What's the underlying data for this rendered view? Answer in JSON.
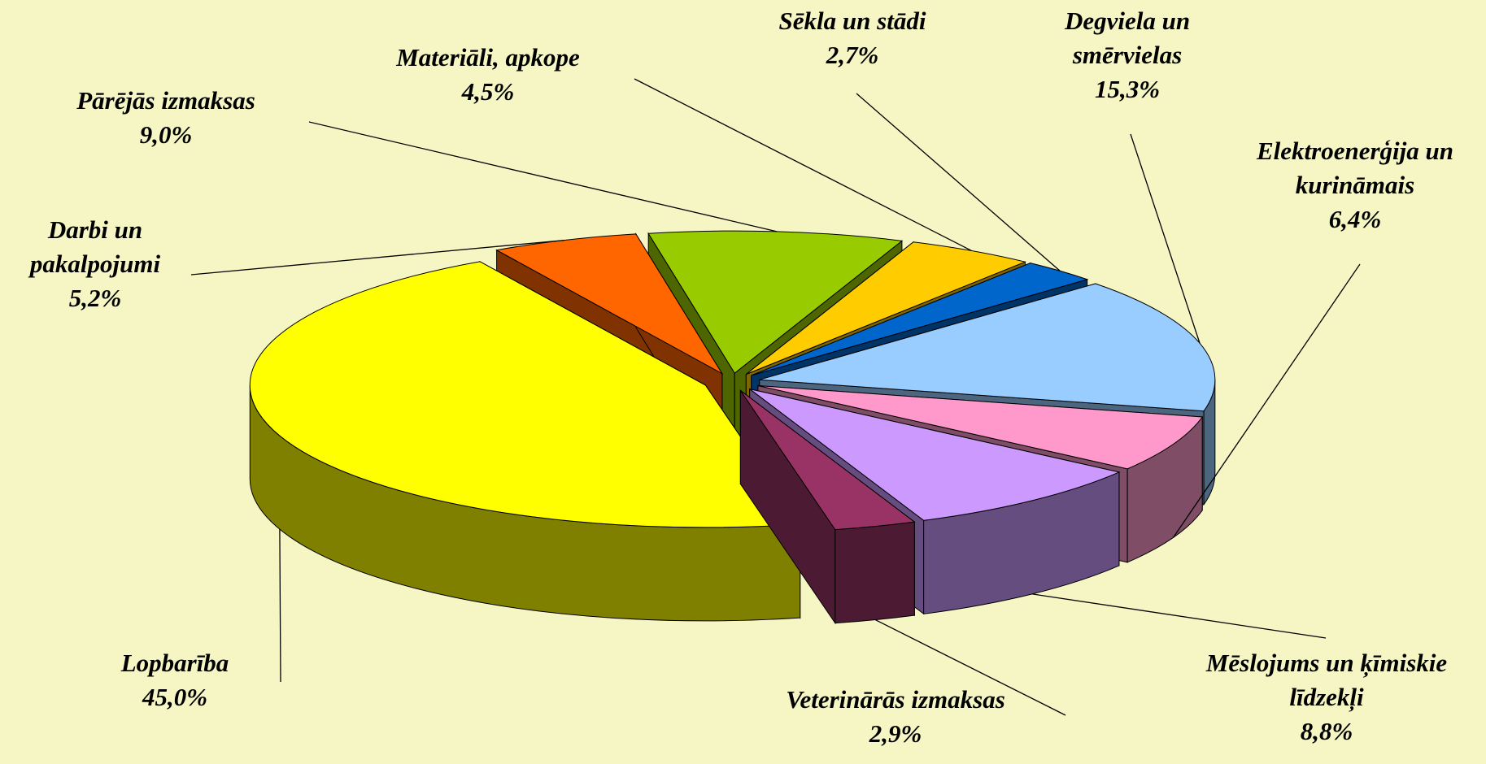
{
  "chart_data": {
    "type": "pie3d",
    "categories": [
      "Lopbarība",
      "Darbi un pakalpojumi",
      "Pārējās izmaksas",
      "Materiāli, apkope",
      "Sēkla un stādi",
      "Degviela un smērvielas",
      "Elektroenerģija un kurināmais",
      "Mēslojums un ķīmiskie līdzekļi",
      "Veterinārās izmaksas"
    ],
    "values": [
      45.0,
      5.2,
      9.0,
      4.5,
      2.7,
      15.3,
      6.4,
      8.8,
      2.9
    ],
    "value_labels": [
      "45,0%",
      "5,2%",
      "9,0%",
      "4,5%",
      "2,7%",
      "15,3%",
      "6,4%",
      "8,8%",
      "2,9%"
    ],
    "colors": [
      "#ffff00",
      "#ff6600",
      "#99cc00",
      "#ffcc00",
      "#0066cc",
      "#99ccff",
      "#ff99cc",
      "#cc99ff",
      "#993366"
    ]
  }
}
